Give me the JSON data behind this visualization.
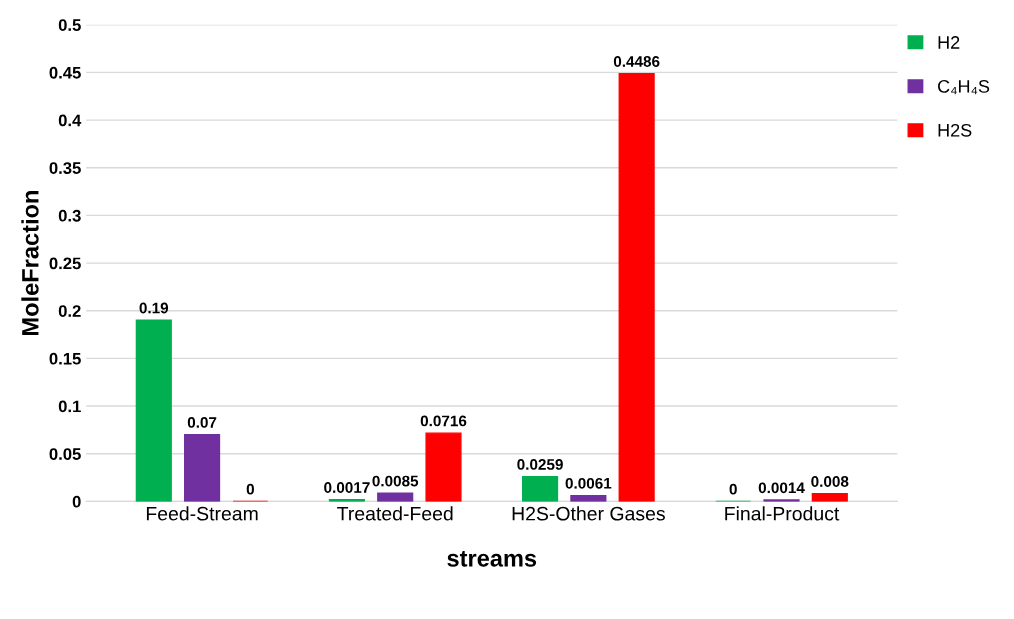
{
  "chart_data": {
    "type": "bar",
    "xlabel": "streams",
    "ylabel": "MoleFraction",
    "categories": [
      "Feed-Stream",
      "Treated-Feed",
      "H2S-Other Gases",
      "Final-Product"
    ],
    "series": [
      {
        "name": "H2",
        "color": "#00b050",
        "values": [
          0.19,
          0.0017,
          0.0259,
          0
        ]
      },
      {
        "name": "C₄H₄S",
        "color": "#7030a0",
        "values": [
          0.07,
          0.0085,
          0.0061,
          0.0014
        ]
      },
      {
        "name": "H2S",
        "color": "#ff0000",
        "values": [
          0,
          0.0716,
          0.4486,
          0.008
        ]
      }
    ],
    "ylim": [
      0,
      0.5
    ],
    "yticks": [
      0,
      0.05,
      0.1,
      0.15,
      0.2,
      0.25,
      0.3,
      0.35,
      0.4,
      0.45,
      0.5
    ],
    "grid": "y",
    "legend": "top right",
    "data_labels": true
  }
}
